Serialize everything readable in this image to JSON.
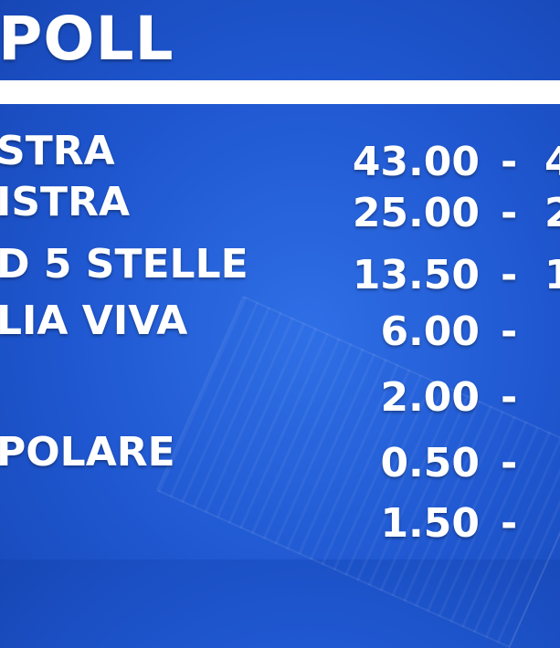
{
  "header": {
    "title": "POLL"
  },
  "rows": [
    {
      "name": "STRA",
      "value": "43.00",
      "dash": "-",
      "next": "4"
    },
    {
      "name": "ISTRA",
      "value": "25.00",
      "dash": "-",
      "next": "2"
    },
    {
      "name": "D 5 STELLE",
      "value": "13.50",
      "dash": "-",
      "next": "1"
    },
    {
      "name": "LIA VIVA",
      "value": "6.00",
      "dash": "-",
      "next": ""
    },
    {
      "name": "",
      "value": "2.00",
      "dash": "-",
      "next": ""
    },
    {
      "name": "POLARE",
      "value": "0.50",
      "dash": "-",
      "next": ""
    },
    {
      "name": "",
      "value": "1.50",
      "dash": "-",
      "next": ""
    }
  ]
}
